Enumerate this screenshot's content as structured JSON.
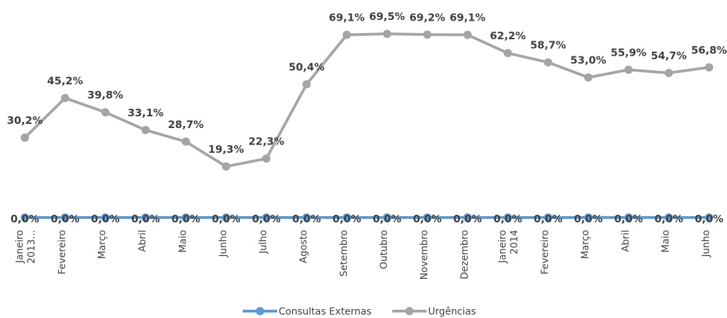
{
  "chart_data": {
    "type": "line",
    "categories": [
      "Janeiro 2013...",
      "Fevereiro",
      "Março",
      "Abril",
      "Maio",
      "Junho",
      "Julho",
      "Agosto",
      "Setembro",
      "Outubro",
      "Novembro",
      "Dezembro",
      "Janeiro 2014",
      "Fevereiro",
      "Março",
      "Abril",
      "Maio",
      "Junho"
    ],
    "series": [
      {
        "name": "Consultas Externas",
        "color": "#5b9bd5",
        "values": [
          0,
          0,
          0,
          0,
          0,
          0,
          0,
          0,
          0,
          0,
          0,
          0,
          0,
          0,
          0,
          0,
          0,
          0
        ],
        "value_labels": [
          "0,0%",
          "0,0%",
          "0,0%",
          "0,0%",
          "0,0%",
          "0,0%",
          "0,0%",
          "0,0%",
          "0,0%",
          "0,0%",
          "0,0%",
          "0,0%",
          "0,0%",
          "0,0%",
          "0,0%",
          "0,0%",
          "0,0%",
          "0,0%"
        ]
      },
      {
        "name": "Urgências",
        "color": "#a5a5a5",
        "values": [
          30.2,
          45.2,
          39.8,
          33.1,
          28.7,
          19.3,
          22.3,
          50.4,
          69.1,
          69.5,
          69.2,
          69.1,
          62.2,
          58.7,
          53.0,
          55.9,
          54.7,
          56.8
        ],
        "value_labels": [
          "30,2%",
          "45,2%",
          "39,8%",
          "33,1%",
          "28,7%",
          "19,3%",
          "22,3%",
          "50,4%",
          "69,1%",
          "69,5%",
          "69,2%",
          "69,1%",
          "62,2%",
          "58,7%",
          "53,0%",
          "55,9%",
          "54,7%",
          "56,8%"
        ]
      }
    ],
    "legend": "bottom"
  }
}
